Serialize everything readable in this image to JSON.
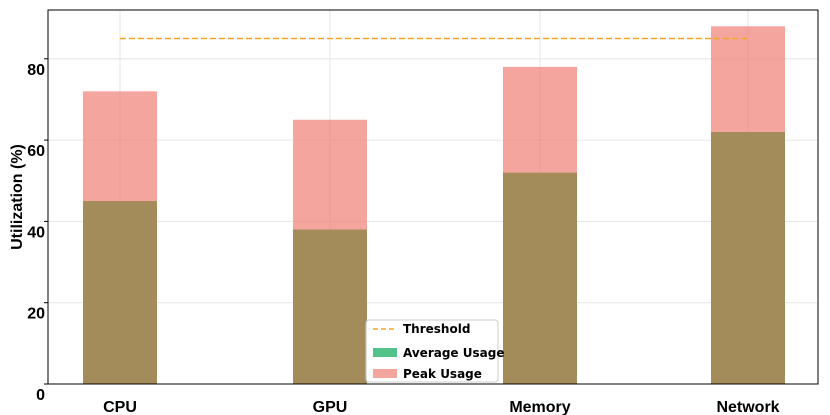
{
  "chart_data": {
    "type": "bar",
    "categories": [
      "CPU",
      "GPU",
      "Memory",
      "Network"
    ],
    "series": [
      {
        "name": "Average Usage",
        "values": [
          45,
          38,
          52,
          62
        ],
        "color": "#52c28a"
      },
      {
        "name": "Peak Usage",
        "values": [
          72,
          65,
          78,
          88
        ],
        "color": "#f08075"
      }
    ],
    "threshold": {
      "name": "Threshold",
      "value": 85,
      "color": "#f5a623"
    },
    "xlabel": "",
    "ylabel": "Utilization (%)",
    "ylim": [
      0,
      92
    ],
    "yticks": [
      0,
      20,
      40,
      60,
      80
    ],
    "grid": true,
    "legend_position": "bottom-center"
  }
}
